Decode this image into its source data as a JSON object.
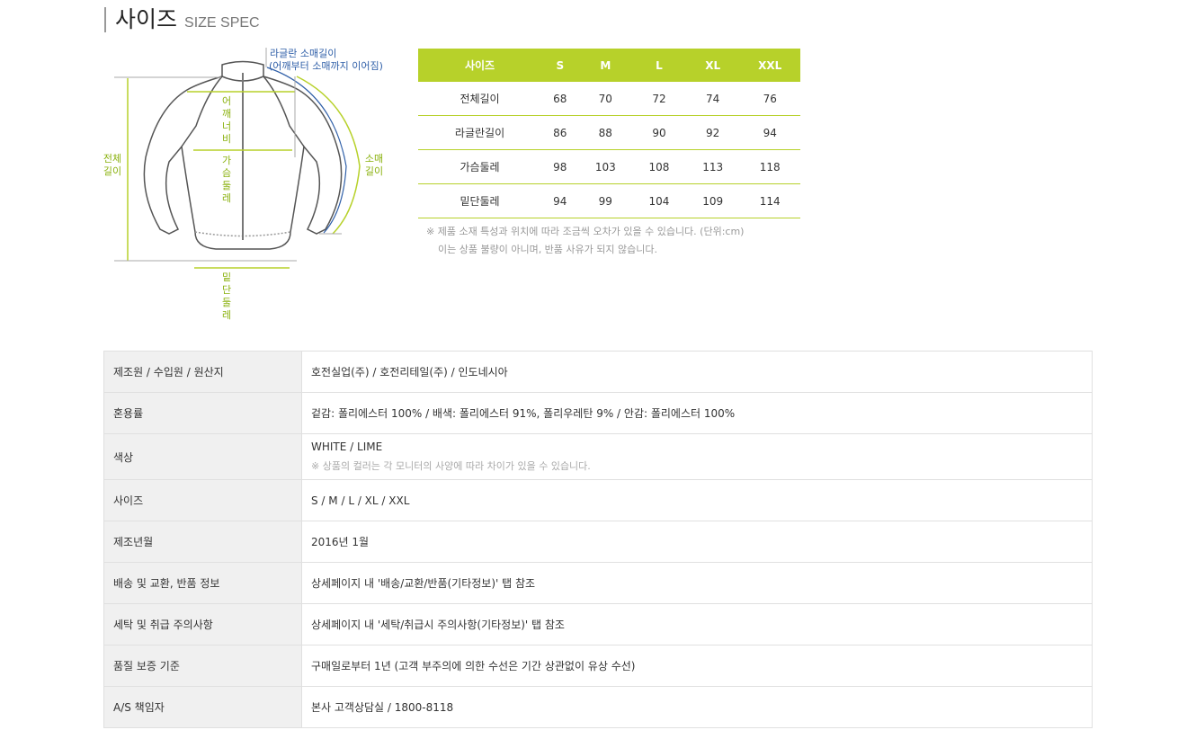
{
  "title": {
    "ko": "사이즈",
    "en": "SIZE SPEC"
  },
  "diagram": {
    "raglan": "라글란 소매길이",
    "raglan_sub": "(어깨부터 소매까지 이어짐)",
    "shoulder": "어깨너비",
    "chest": "가슴둘레",
    "length": "전체\n길이",
    "sleeve": "소매\n길이",
    "hem": "밑단둘레",
    "colors": {
      "lime": "#b7d12a",
      "blue": "#2f5fa8"
    }
  },
  "size_table": {
    "headers": [
      "사이즈",
      "S",
      "M",
      "L",
      "XL",
      "XXL"
    ],
    "rows": [
      [
        "전체길이",
        "68",
        "70",
        "72",
        "74",
        "76"
      ],
      [
        "라글란길이",
        "86",
        "88",
        "90",
        "92",
        "94"
      ],
      [
        "가슴둘레",
        "98",
        "103",
        "108",
        "113",
        "118"
      ],
      [
        "밑단둘레",
        "94",
        "99",
        "104",
        "109",
        "114"
      ]
    ]
  },
  "notes": [
    "※ 제품 소재 특성과 위치에 따라 조금씩 오차가 있을 수 있습니다. (단위:cm)",
    "이는 상품 불량이 아니며, 반품 사유가 되지 않습니다."
  ],
  "info": [
    {
      "k": "제조원 / 수입원 / 원산지",
      "v": "호전실업(주) / 호전리테일(주) / 인도네시아"
    },
    {
      "k": "혼용률",
      "v": "겉감: 폴리에스터 100% / 배색: 폴리에스터 91%, 폴리우레탄 9% / 안감: 폴리에스터 100%"
    },
    {
      "k": "색상",
      "v": "WHITE / LIME",
      "sub": "※ 상품의 컬러는 각 모니터의 사양에 따라 차이가 있을 수 있습니다."
    },
    {
      "k": "사이즈",
      "v": "S / M / L / XL / XXL"
    },
    {
      "k": "제조년월",
      "v": "2016년 1월"
    },
    {
      "k": "배송 및 교환, 반품 정보",
      "v": "상세페이지 내 '배송/교환/반품(기타정보)' 탭 참조"
    },
    {
      "k": "세탁 및 취급 주의사항",
      "v": "상세페이지 내 '세탁/취급시 주의사항(기타정보)' 탭 참조"
    },
    {
      "k": "품질 보증 기준",
      "v": "구매일로부터 1년 (고객 부주의에 의한 수선은 기간 상관없이 유상 수선)"
    },
    {
      "k": "A/S 책임자",
      "v": "본사 고객상담실 / 1800-8118"
    }
  ]
}
